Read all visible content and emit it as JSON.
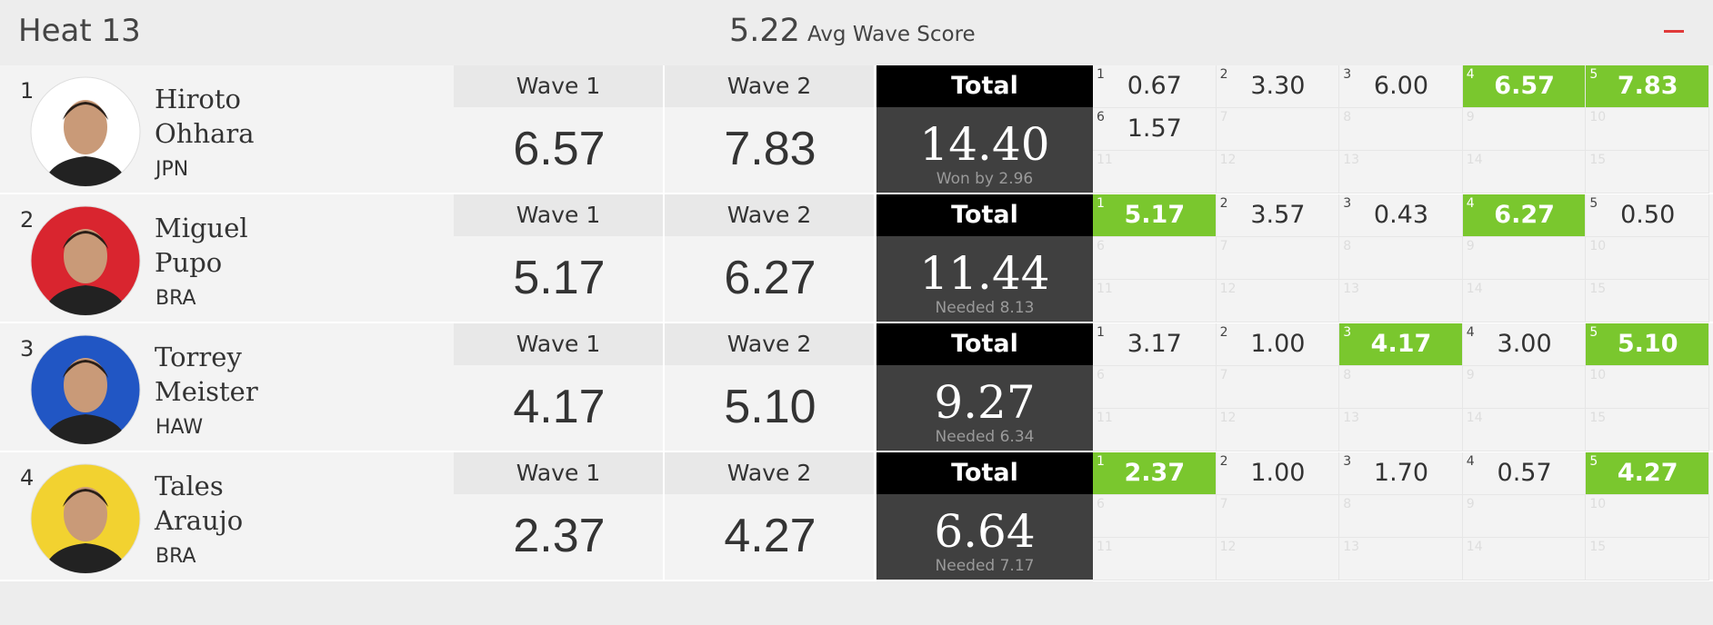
{
  "header": {
    "title": "Heat 13",
    "avg_score": "5.22",
    "avg_label": "Avg Wave Score"
  },
  "surfers": [
    {
      "rank": "1",
      "first_name": "Hiroto",
      "last_name": "Ohhara",
      "country": "JPN",
      "avatar_color": "#ffffff",
      "wave_labels": [
        "Wave 1",
        "Wave 2"
      ],
      "best_waves": [
        "6.57",
        "7.83"
      ],
      "total_label": "Total",
      "total": "14.40",
      "note": "Won by 2.96",
      "waves": [
        {
          "number": "1",
          "score": "0.67",
          "counted": false
        },
        {
          "number": "2",
          "score": "3.30",
          "counted": false
        },
        {
          "number": "3",
          "score": "6.00",
          "counted": false
        },
        {
          "number": "4",
          "score": "6.57",
          "counted": true
        },
        {
          "number": "5",
          "score": "7.83",
          "counted": true
        },
        {
          "number": "6",
          "score": "1.57",
          "counted": false
        },
        {
          "number": "7"
        },
        {
          "number": "8"
        },
        {
          "number": "9"
        },
        {
          "number": "10"
        },
        {
          "number": "11"
        },
        {
          "number": "12"
        },
        {
          "number": "13"
        },
        {
          "number": "14"
        },
        {
          "number": "15"
        }
      ]
    },
    {
      "rank": "2",
      "first_name": "Miguel",
      "last_name": "Pupo",
      "country": "BRA",
      "avatar_color": "#d9252f",
      "wave_labels": [
        "Wave 1",
        "Wave 2"
      ],
      "best_waves": [
        "5.17",
        "6.27"
      ],
      "total_label": "Total",
      "total": "11.44",
      "note": "Needed 8.13",
      "waves": [
        {
          "number": "1",
          "score": "5.17",
          "counted": true
        },
        {
          "number": "2",
          "score": "3.57",
          "counted": false
        },
        {
          "number": "3",
          "score": "0.43",
          "counted": false
        },
        {
          "number": "4",
          "score": "6.27",
          "counted": true
        },
        {
          "number": "5",
          "score": "0.50",
          "counted": false
        },
        {
          "number": "6"
        },
        {
          "number": "7"
        },
        {
          "number": "8"
        },
        {
          "number": "9"
        },
        {
          "number": "10"
        },
        {
          "number": "11"
        },
        {
          "number": "12"
        },
        {
          "number": "13"
        },
        {
          "number": "14"
        },
        {
          "number": "15"
        }
      ]
    },
    {
      "rank": "3",
      "first_name": "Torrey",
      "last_name": "Meister",
      "country": "HAW",
      "avatar_color": "#2156c4",
      "wave_labels": [
        "Wave 1",
        "Wave 2"
      ],
      "best_waves": [
        "4.17",
        "5.10"
      ],
      "total_label": "Total",
      "total": "9.27",
      "note": "Needed 6.34",
      "waves": [
        {
          "number": "1",
          "score": "3.17",
          "counted": false
        },
        {
          "number": "2",
          "score": "1.00",
          "counted": false
        },
        {
          "number": "3",
          "score": "4.17",
          "counted": true
        },
        {
          "number": "4",
          "score": "3.00",
          "counted": false
        },
        {
          "number": "5",
          "score": "5.10",
          "counted": true
        },
        {
          "number": "6"
        },
        {
          "number": "7"
        },
        {
          "number": "8"
        },
        {
          "number": "9"
        },
        {
          "number": "10"
        },
        {
          "number": "11"
        },
        {
          "number": "12"
        },
        {
          "number": "13"
        },
        {
          "number": "14"
        },
        {
          "number": "15"
        }
      ]
    },
    {
      "rank": "4",
      "first_name": "Tales",
      "last_name": "Araujo",
      "country": "BRA",
      "avatar_color": "#f2d230",
      "wave_labels": [
        "Wave 1",
        "Wave 2"
      ],
      "best_waves": [
        "2.37",
        "4.27"
      ],
      "total_label": "Total",
      "total": "6.64",
      "note": "Needed 7.17",
      "waves": [
        {
          "number": "1",
          "score": "2.37",
          "counted": true
        },
        {
          "number": "2",
          "score": "1.00",
          "counted": false
        },
        {
          "number": "3",
          "score": "1.70",
          "counted": false
        },
        {
          "number": "4",
          "score": "0.57",
          "counted": false
        },
        {
          "number": "5",
          "score": "4.27",
          "counted": true
        },
        {
          "number": "6"
        },
        {
          "number": "7"
        },
        {
          "number": "8"
        },
        {
          "number": "9"
        },
        {
          "number": "10"
        },
        {
          "number": "11"
        },
        {
          "number": "12"
        },
        {
          "number": "13"
        },
        {
          "number": "14"
        },
        {
          "number": "15"
        }
      ]
    }
  ]
}
